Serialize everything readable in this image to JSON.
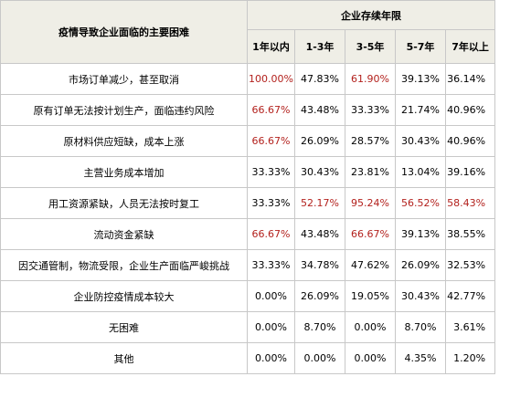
{
  "table": {
    "corner_header": "疫情导致企业面临的主要困难",
    "group_header": "企业存续年限",
    "columns": [
      "1年以内",
      "1-3年",
      "3-5年",
      "5-7年",
      "7年以上"
    ],
    "rows": [
      {
        "label": "市场订单减少，甚至取消",
        "values": [
          "100.00%",
          "47.83%",
          "61.90%",
          "39.13%",
          "36.14%"
        ],
        "highlight": [
          true,
          false,
          true,
          false,
          false
        ]
      },
      {
        "label": "原有订单无法按计划生产，面临违约风险",
        "values": [
          "66.67%",
          "43.48%",
          "33.33%",
          "21.74%",
          "40.96%"
        ],
        "highlight": [
          true,
          false,
          false,
          false,
          false
        ]
      },
      {
        "label": "原材料供应短缺，成本上涨",
        "values": [
          "66.67%",
          "26.09%",
          "28.57%",
          "30.43%",
          "40.96%"
        ],
        "highlight": [
          true,
          false,
          false,
          false,
          false
        ]
      },
      {
        "label": "主营业务成本增加",
        "values": [
          "33.33%",
          "30.43%",
          "23.81%",
          "13.04%",
          "39.16%"
        ],
        "highlight": [
          false,
          false,
          false,
          false,
          false
        ]
      },
      {
        "label": "用工资源紧缺，人员无法按时复工",
        "values": [
          "33.33%",
          "52.17%",
          "95.24%",
          "56.52%",
          "58.43%"
        ],
        "highlight": [
          false,
          true,
          true,
          true,
          true
        ]
      },
      {
        "label": "流动资金紧缺",
        "values": [
          "66.67%",
          "43.48%",
          "66.67%",
          "39.13%",
          "38.55%"
        ],
        "highlight": [
          true,
          false,
          true,
          false,
          false
        ]
      },
      {
        "label": "因交通管制，物流受限，企业生产面临严峻挑战",
        "values": [
          "33.33%",
          "34.78%",
          "47.62%",
          "26.09%",
          "32.53%"
        ],
        "highlight": [
          false,
          false,
          false,
          false,
          false
        ]
      },
      {
        "label": "企业防控疫情成本较大",
        "values": [
          "0.00%",
          "26.09%",
          "19.05%",
          "30.43%",
          "42.77%"
        ],
        "highlight": [
          false,
          false,
          false,
          false,
          false
        ]
      },
      {
        "label": "无困难",
        "values": [
          "0.00%",
          "8.70%",
          "0.00%",
          "8.70%",
          "3.61%"
        ],
        "highlight": [
          false,
          false,
          false,
          false,
          false
        ]
      },
      {
        "label": "其他",
        "values": [
          "0.00%",
          "0.00%",
          "0.00%",
          "4.35%",
          "1.20%"
        ],
        "highlight": [
          false,
          false,
          false,
          false,
          false
        ]
      }
    ]
  },
  "colors": {
    "header_bg": "#efeee6",
    "border": "#c8c8c8",
    "highlight_text": "#b3211d",
    "normal_text": "#000000"
  }
}
